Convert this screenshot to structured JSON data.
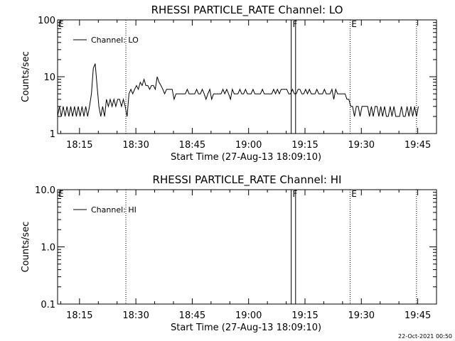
{
  "footer": {
    "timestamp": "22-Oct-2021 00:50"
  },
  "chart_data": [
    {
      "type": "line",
      "title": "RHESSI PARTICLE_RATE Channel: LO",
      "xlabel": "Start Time (27-Aug-13 18:09:10)",
      "ylabel": "Counts/sec",
      "yscale": "log",
      "xlim": [
        "18:09:10",
        "19:50:00"
      ],
      "ylim": [
        1,
        100
      ],
      "x_ticks": [
        "18:15",
        "18:30",
        "18:45",
        "19:00",
        "19:15",
        "19:30",
        "19:45"
      ],
      "y_ticks": [
        "1",
        "10",
        "100"
      ],
      "grid": false,
      "legend": {
        "position": "top-left",
        "entries": [
          "Channel: LO"
        ]
      },
      "flags": [
        {
          "label": "E",
          "time": "18:09:10"
        },
        {
          "label": "F",
          "time": "19:11:30"
        },
        {
          "label": "E",
          "time": "19:27:10"
        }
      ],
      "vlines": [
        {
          "time": "18:27:20",
          "style": "dotted"
        },
        {
          "time": "19:11:20",
          "style": "solid"
        },
        {
          "time": "19:12:30",
          "style": "solid"
        },
        {
          "time": "19:27:00",
          "style": "dotted"
        },
        {
          "time": "19:44:40",
          "style": "dotted"
        }
      ],
      "series": [
        {
          "name": "Channel: LO",
          "points": [
            [
              "18:09:10",
              2
            ],
            [
              "18:09:40",
              3
            ],
            [
              "18:10:10",
              2
            ],
            [
              "18:10:40",
              3
            ],
            [
              "18:11:10",
              2
            ],
            [
              "18:11:40",
              3
            ],
            [
              "18:12:10",
              2
            ],
            [
              "18:12:40",
              3
            ],
            [
              "18:13:10",
              2
            ],
            [
              "18:13:40",
              3
            ],
            [
              "18:14:10",
              2
            ],
            [
              "18:14:40",
              3
            ],
            [
              "18:15:10",
              2
            ],
            [
              "18:15:40",
              3
            ],
            [
              "18:16:10",
              2
            ],
            [
              "18:16:40",
              3
            ],
            [
              "18:17:10",
              2
            ],
            [
              "18:17:40",
              3
            ],
            [
              "18:18:10",
              5
            ],
            [
              "18:18:40",
              14
            ],
            [
              "18:19:10",
              17
            ],
            [
              "18:19:40",
              7
            ],
            [
              "18:20:10",
              3
            ],
            [
              "18:20:40",
              2
            ],
            [
              "18:21:10",
              3
            ],
            [
              "18:21:40",
              2
            ],
            [
              "18:22:10",
              4
            ],
            [
              "18:22:40",
              3
            ],
            [
              "18:23:10",
              4
            ],
            [
              "18:23:40",
              3
            ],
            [
              "18:24:10",
              4
            ],
            [
              "18:24:40",
              3
            ],
            [
              "18:25:10",
              4
            ],
            [
              "18:25:40",
              4
            ],
            [
              "18:26:10",
              3
            ],
            [
              "18:26:40",
              4
            ],
            [
              "18:27:10",
              3
            ],
            [
              "18:27:40",
              2
            ],
            [
              "18:28:10",
              5
            ],
            [
              "18:28:40",
              6
            ],
            [
              "18:29:10",
              5
            ],
            [
              "18:29:40",
              6
            ],
            [
              "18:30:10",
              7
            ],
            [
              "18:30:40",
              6
            ],
            [
              "18:31:10",
              8
            ],
            [
              "18:31:40",
              7
            ],
            [
              "18:32:10",
              9
            ],
            [
              "18:32:40",
              7
            ],
            [
              "18:33:10",
              7
            ],
            [
              "18:33:40",
              6
            ],
            [
              "18:34:10",
              7
            ],
            [
              "18:34:40",
              7
            ],
            [
              "18:35:10",
              6
            ],
            [
              "18:35:40",
              10
            ],
            [
              "18:36:10",
              8
            ],
            [
              "18:36:40",
              7
            ],
            [
              "18:37:10",
              6
            ],
            [
              "18:37:40",
              5
            ],
            [
              "18:38:10",
              6
            ],
            [
              "18:38:40",
              6
            ],
            [
              "18:39:10",
              6
            ],
            [
              "18:39:40",
              6
            ],
            [
              "18:40:10",
              4
            ],
            [
              "18:40:40",
              5
            ],
            [
              "18:41:10",
              5
            ],
            [
              "18:41:40",
              5
            ],
            [
              "18:42:10",
              5
            ],
            [
              "18:42:40",
              5
            ],
            [
              "18:43:10",
              5
            ],
            [
              "18:43:40",
              6
            ],
            [
              "18:44:10",
              5
            ],
            [
              "18:44:40",
              5
            ],
            [
              "18:45:10",
              5
            ],
            [
              "18:45:40",
              5
            ],
            [
              "18:46:10",
              6
            ],
            [
              "18:46:40",
              5
            ],
            [
              "18:47:10",
              5
            ],
            [
              "18:47:40",
              6
            ],
            [
              "18:48:10",
              5
            ],
            [
              "18:48:40",
              4
            ],
            [
              "18:49:10",
              5
            ],
            [
              "18:49:40",
              6
            ],
            [
              "18:50:10",
              4
            ],
            [
              "18:50:40",
              5
            ],
            [
              "18:51:10",
              5
            ],
            [
              "18:51:40",
              5
            ],
            [
              "18:52:10",
              5
            ],
            [
              "18:52:40",
              5
            ],
            [
              "18:53:10",
              6
            ],
            [
              "18:53:40",
              5
            ],
            [
              "18:54:10",
              6
            ],
            [
              "18:54:40",
              5
            ],
            [
              "18:55:10",
              4
            ],
            [
              "18:55:40",
              6
            ],
            [
              "18:56:10",
              5
            ],
            [
              "18:56:40",
              5
            ],
            [
              "18:57:10",
              5
            ],
            [
              "18:57:40",
              6
            ],
            [
              "18:58:10",
              5
            ],
            [
              "18:58:40",
              5
            ],
            [
              "18:59:10",
              6
            ],
            [
              "18:59:40",
              5
            ],
            [
              "19:00:10",
              5
            ],
            [
              "19:00:40",
              5
            ],
            [
              "19:01:10",
              6
            ],
            [
              "19:01:40",
              5
            ],
            [
              "19:02:10",
              5
            ],
            [
              "19:02:40",
              5
            ],
            [
              "19:03:10",
              5
            ],
            [
              "19:03:40",
              6
            ],
            [
              "19:04:10",
              5
            ],
            [
              "19:04:40",
              5
            ],
            [
              "19:05:10",
              5
            ],
            [
              "19:05:40",
              5
            ],
            [
              "19:06:10",
              5
            ],
            [
              "19:06:40",
              6
            ],
            [
              "19:07:10",
              5
            ],
            [
              "19:07:40",
              6
            ],
            [
              "19:08:10",
              5
            ],
            [
              "19:08:40",
              6
            ],
            [
              "19:09:10",
              6
            ],
            [
              "19:09:40",
              6
            ],
            [
              "19:10:10",
              6
            ],
            [
              "19:10:40",
              5
            ],
            [
              "19:11:10",
              5
            ],
            [
              "19:11:40",
              6
            ],
            [
              "19:12:10",
              5
            ],
            [
              "19:12:40",
              5
            ],
            [
              "19:13:10",
              6
            ],
            [
              "19:13:40",
              6
            ],
            [
              "19:14:10",
              5
            ],
            [
              "19:14:40",
              5
            ],
            [
              "19:15:10",
              6
            ],
            [
              "19:15:40",
              5
            ],
            [
              "19:16:10",
              6
            ],
            [
              "19:16:40",
              5
            ],
            [
              "19:17:10",
              5
            ],
            [
              "19:17:40",
              5
            ],
            [
              "19:18:10",
              6
            ],
            [
              "19:18:40",
              5
            ],
            [
              "19:19:10",
              5
            ],
            [
              "19:19:40",
              5
            ],
            [
              "19:20:10",
              6
            ],
            [
              "19:20:40",
              5
            ],
            [
              "19:21:10",
              5
            ],
            [
              "19:21:40",
              5
            ],
            [
              "19:22:10",
              6
            ],
            [
              "19:22:40",
              4
            ],
            [
              "19:23:10",
              6
            ],
            [
              "19:23:40",
              5
            ],
            [
              "19:24:10",
              5
            ],
            [
              "19:24:40",
              5
            ],
            [
              "19:25:10",
              5
            ],
            [
              "19:25:40",
              5
            ],
            [
              "19:26:10",
              4
            ],
            [
              "19:26:40",
              4
            ],
            [
              "19:27:10",
              3
            ],
            [
              "19:27:40",
              3
            ],
            [
              "19:28:10",
              2
            ],
            [
              "19:28:40",
              3
            ],
            [
              "19:29:10",
              3
            ],
            [
              "19:29:40",
              2
            ],
            [
              "19:30:10",
              3
            ],
            [
              "19:30:40",
              3
            ],
            [
              "19:31:10",
              3
            ],
            [
              "19:31:40",
              3
            ],
            [
              "19:32:10",
              2
            ],
            [
              "19:32:40",
              3
            ],
            [
              "19:33:10",
              2
            ],
            [
              "19:33:40",
              3
            ],
            [
              "19:34:10",
              3
            ],
            [
              "19:34:40",
              2
            ],
            [
              "19:35:10",
              3
            ],
            [
              "19:35:40",
              2
            ],
            [
              "19:36:10",
              3
            ],
            [
              "19:36:40",
              2
            ],
            [
              "19:37:10",
              2
            ],
            [
              "19:37:40",
              3
            ],
            [
              "19:38:10",
              2
            ],
            [
              "19:38:40",
              3
            ],
            [
              "19:39:10",
              2
            ],
            [
              "19:39:40",
              2
            ],
            [
              "19:40:10",
              2
            ],
            [
              "19:40:40",
              3
            ],
            [
              "19:41:10",
              2
            ],
            [
              "19:41:40",
              2
            ],
            [
              "19:42:10",
              3
            ],
            [
              "19:42:40",
              2
            ],
            [
              "19:43:10",
              3
            ],
            [
              "19:43:40",
              2
            ],
            [
              "19:44:10",
              3
            ],
            [
              "19:44:40",
              2
            ],
            [
              "19:45:10",
              3
            ]
          ]
        }
      ]
    },
    {
      "type": "line",
      "title": "RHESSI PARTICLE_RATE Channel: HI",
      "xlabel": "Start Time (27-Aug-13 18:09:10)",
      "ylabel": "Counts/sec",
      "yscale": "log",
      "xlim": [
        "18:09:10",
        "19:50:00"
      ],
      "ylim": [
        0.1,
        10
      ],
      "x_ticks": [
        "18:15",
        "18:30",
        "18:45",
        "19:00",
        "19:15",
        "19:30",
        "19:45"
      ],
      "y_ticks": [
        "0.1",
        "1.0",
        "10.0"
      ],
      "grid": false,
      "legend": {
        "position": "top-left",
        "entries": [
          "Channel: HI"
        ]
      },
      "flags": [
        {
          "label": "E",
          "time": "18:09:10"
        },
        {
          "label": "F",
          "time": "19:11:30"
        },
        {
          "label": "E",
          "time": "19:27:10"
        }
      ],
      "vlines": [
        {
          "time": "18:27:20",
          "style": "dotted"
        },
        {
          "time": "19:11:20",
          "style": "solid"
        },
        {
          "time": "19:12:30",
          "style": "solid"
        },
        {
          "time": "19:27:00",
          "style": "dotted"
        },
        {
          "time": "19:44:40",
          "style": "dotted"
        }
      ],
      "series": [
        {
          "name": "Channel: HI",
          "points": []
        }
      ]
    }
  ]
}
